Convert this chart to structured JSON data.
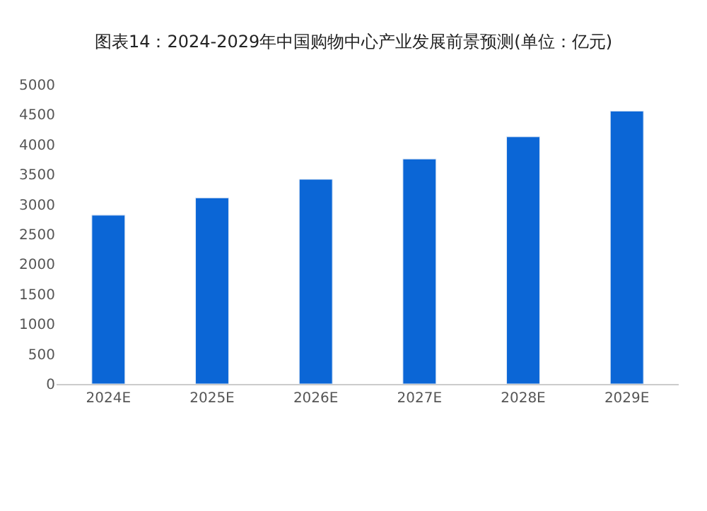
{
  "chart_data": {
    "type": "bar",
    "title": "图表14：2024-2029年中国购物中心产业发展前景预测(单位：亿元)",
    "categories": [
      "2024E",
      "2025E",
      "2026E",
      "2027E",
      "2028E",
      "2029E"
    ],
    "values": [
      2820,
      3110,
      3420,
      3760,
      4130,
      4560
    ],
    "color": "#0b66d6",
    "ylim": [
      0,
      5000
    ],
    "yticks": [
      0,
      500,
      1000,
      1500,
      2000,
      2500,
      3000,
      3500,
      4000,
      4500,
      5000
    ]
  }
}
